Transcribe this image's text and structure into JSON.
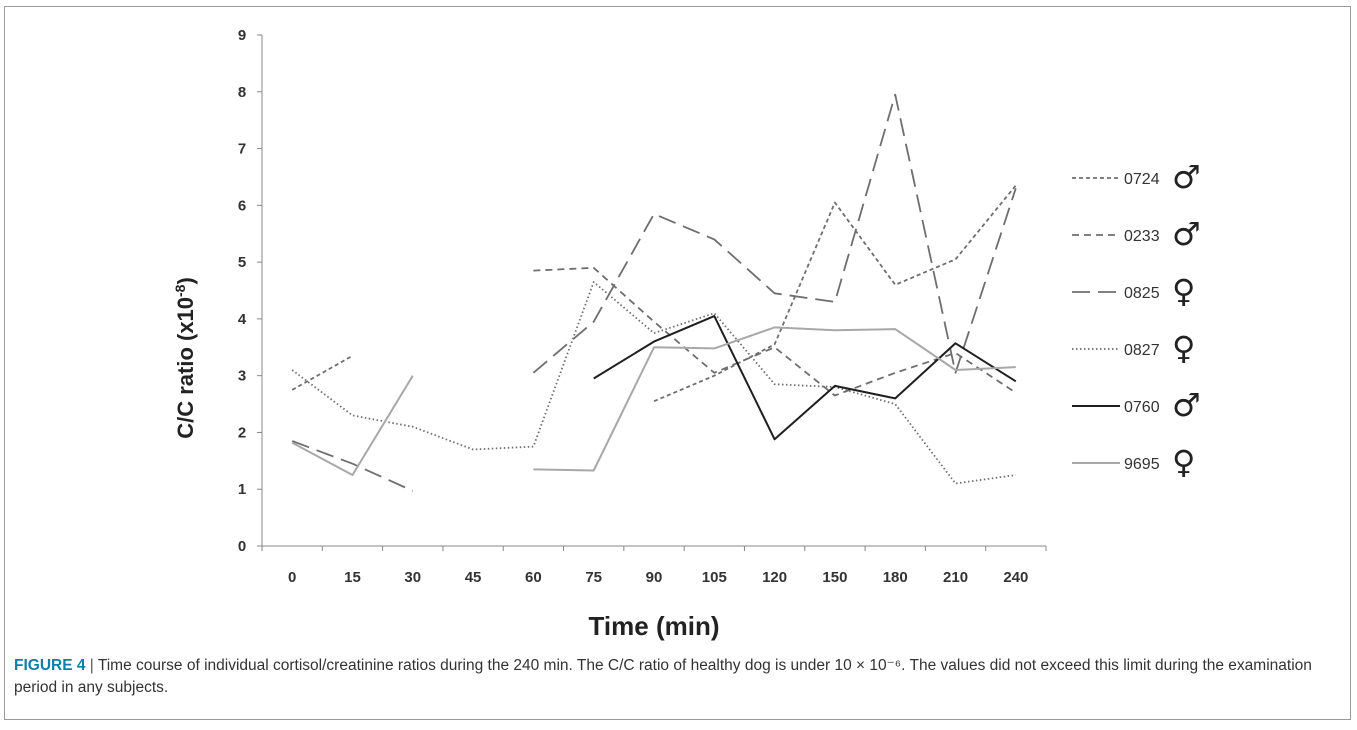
{
  "chart_data": {
    "type": "line",
    "xlabel": "Time (min)",
    "ylabel": "C/C ratio (x10",
    "ylabel_sup": "-8",
    "ylabel_close": ")",
    "categories": [
      "0",
      "15",
      "30",
      "45",
      "60",
      "75",
      "90",
      "105",
      "120",
      "150",
      "180",
      "210",
      "240"
    ],
    "ylim": [
      0,
      9
    ],
    "yticks": [
      "0",
      "1",
      "2",
      "3",
      "4",
      "5",
      "6",
      "7",
      "8",
      "9"
    ],
    "grid": false,
    "legend_position": "right",
    "series": [
      {
        "name": "0724",
        "sex": "♂",
        "style": "short-dash",
        "color": "#6e6e6e",
        "values": [
          2.75,
          3.35,
          null,
          null,
          null,
          null,
          2.55,
          3.0,
          3.55,
          6.05,
          4.6,
          5.05,
          6.35
        ]
      },
      {
        "name": "0233",
        "sex": "♂",
        "style": "dash",
        "color": "#6e6e6e",
        "values": [
          null,
          null,
          null,
          null,
          4.85,
          4.9,
          3.95,
          3.05,
          3.5,
          2.65,
          3.05,
          3.4,
          2.7
        ]
      },
      {
        "name": "0825",
        "sex": "♀",
        "style": "long-dash",
        "color": "#6e6e6e",
        "values": [
          1.85,
          1.45,
          0.97,
          null,
          3.05,
          3.95,
          5.85,
          5.4,
          4.45,
          4.3,
          7.95,
          3.05,
          6.3
        ]
      },
      {
        "name": "0827",
        "sex": "♀",
        "style": "dotted",
        "color": "#6e6e6e",
        "values": [
          3.1,
          2.3,
          2.1,
          1.7,
          1.75,
          4.65,
          3.75,
          4.1,
          2.85,
          2.8,
          2.5,
          1.1,
          1.25
        ]
      },
      {
        "name": "0760",
        "sex": "♂",
        "style": "solid",
        "color": "#1f1f1f",
        "values": [
          null,
          null,
          null,
          null,
          null,
          2.95,
          3.6,
          4.05,
          1.88,
          2.82,
          2.6,
          3.57,
          2.9
        ]
      },
      {
        "name": "9695",
        "sex": "♀",
        "style": "solid",
        "color": "#a8a8a8",
        "values": [
          1.82,
          1.25,
          3.0,
          null,
          1.35,
          1.33,
          3.5,
          3.48,
          3.85,
          3.8,
          3.82,
          3.1,
          3.15
        ]
      }
    ]
  },
  "caption": {
    "label": "FIGURE 4",
    "separator": " | ",
    "text": "Time course of individual cortisol/creatinine ratios during the 240 min. The C/C ratio of healthy dog is under 10 × 10⁻⁶. The values did not exceed this limit during the examination period in any subjects."
  }
}
